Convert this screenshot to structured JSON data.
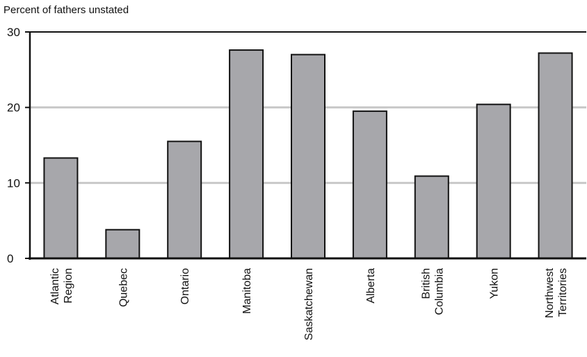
{
  "chart_data": {
    "type": "bar",
    "title": "",
    "xlabel": "",
    "ylabel": "Percent of fathers unstated",
    "ylim": [
      0,
      30
    ],
    "yticks": [
      0,
      10,
      20,
      30
    ],
    "grid": true,
    "categories": [
      [
        "Atlantic",
        "Region"
      ],
      [
        "Quebec"
      ],
      [
        "Ontario"
      ],
      [
        "Manitoba"
      ],
      [
        "Saskatchewan"
      ],
      [
        "Alberta"
      ],
      [
        "British",
        "Columbia"
      ],
      [
        "Yukon"
      ],
      [
        "Northwest",
        "Territories"
      ]
    ],
    "values": [
      13.3,
      3.8,
      15.5,
      27.6,
      27.0,
      19.5,
      10.9,
      20.4,
      27.2
    ],
    "colors": {
      "bar": "#a7a7ab",
      "bar_stroke": "#111111",
      "grid": "#c8c8c8",
      "axis": "#111111"
    }
  }
}
